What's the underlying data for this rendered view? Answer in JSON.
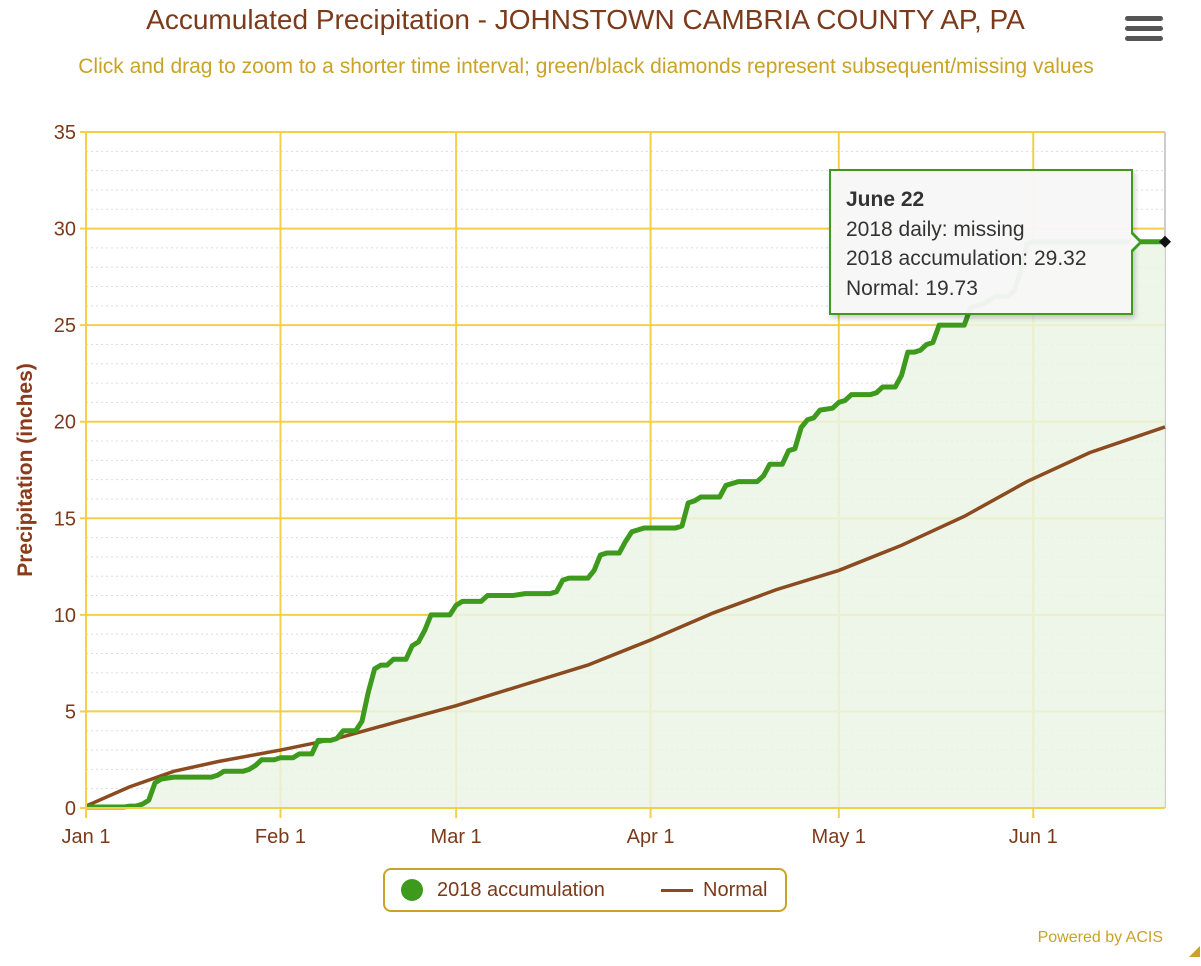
{
  "title": "Accumulated Precipitation - JOHNSTOWN CAMBRIA COUNTY AP, PA",
  "subtitle": "Click and drag to zoom to a shorter time interval; green/black diamonds represent subsequent/missing values",
  "menu_icon": "hamburger-menu-icon",
  "credit": "Powered by ACIS",
  "colors": {
    "accumulation": "#3d9a1c",
    "normal": "#8b4a1f",
    "grid": "#f3cf4a",
    "title": "#7b3a1a",
    "subtitle": "#c9a227",
    "area_fill": "#eaf4e4"
  },
  "tooltip": {
    "date": "June 22",
    "daily": "2018 daily: missing",
    "accumulation": "2018 accumulation: 29.32",
    "normal": "Normal: 19.73"
  },
  "legend": {
    "accumulation_label": "2018 accumulation",
    "normal_label": "Normal"
  },
  "chart_data": {
    "type": "line",
    "title": "Accumulated Precipitation - JOHNSTOWN CAMBRIA COUNTY AP, PA",
    "xlabel": "",
    "ylabel": "Precipitation (inches)",
    "x_unit": "day of year 2018 (Jan 1 = 0)",
    "xlim": [
      0,
      172
    ],
    "ylim": [
      0,
      35
    ],
    "yticks": [
      0,
      5,
      10,
      15,
      20,
      25,
      30,
      35
    ],
    "xticks": [
      {
        "label": "Jan 1",
        "day": 0
      },
      {
        "label": "Feb 1",
        "day": 31
      },
      {
        "label": "Mar 1",
        "day": 59
      },
      {
        "label": "Apr 1",
        "day": 90
      },
      {
        "label": "May 1",
        "day": 120
      },
      {
        "label": "Jun 1",
        "day": 151
      }
    ],
    "grid": true,
    "legend_position": "bottom-center",
    "series": [
      {
        "name": "2018 accumulation",
        "points": [
          [
            0,
            0.05
          ],
          [
            3,
            0.05
          ],
          [
            6,
            0.05
          ],
          [
            7,
            0.1
          ],
          [
            8,
            0.1
          ],
          [
            9,
            0.2
          ],
          [
            10,
            0.4
          ],
          [
            11,
            1.3
          ],
          [
            12,
            1.5
          ],
          [
            14,
            1.6
          ],
          [
            17,
            1.6
          ],
          [
            20,
            1.6
          ],
          [
            21,
            1.7
          ],
          [
            22,
            1.9
          ],
          [
            25,
            1.9
          ],
          [
            26,
            2.0
          ],
          [
            27,
            2.2
          ],
          [
            28,
            2.5
          ],
          [
            30,
            2.5
          ],
          [
            31,
            2.6
          ],
          [
            33,
            2.6
          ],
          [
            34,
            2.8
          ],
          [
            36,
            2.8
          ],
          [
            37,
            3.5
          ],
          [
            39,
            3.5
          ],
          [
            40,
            3.6
          ],
          [
            41,
            4.0
          ],
          [
            43,
            4.0
          ],
          [
            44,
            4.5
          ],
          [
            45,
            6.0
          ],
          [
            46,
            7.2
          ],
          [
            47,
            7.4
          ],
          [
            48,
            7.4
          ],
          [
            49,
            7.7
          ],
          [
            51,
            7.7
          ],
          [
            52,
            8.4
          ],
          [
            53,
            8.6
          ],
          [
            54,
            9.2
          ],
          [
            55,
            10.0
          ],
          [
            58,
            10.0
          ],
          [
            59,
            10.5
          ],
          [
            60,
            10.7
          ],
          [
            63,
            10.7
          ],
          [
            64,
            11.0
          ],
          [
            68,
            11.0
          ],
          [
            70,
            11.1
          ],
          [
            74,
            11.1
          ],
          [
            75,
            11.2
          ],
          [
            76,
            11.8
          ],
          [
            77,
            11.9
          ],
          [
            80,
            11.9
          ],
          [
            81,
            12.3
          ],
          [
            82,
            13.1
          ],
          [
            83,
            13.2
          ],
          [
            85,
            13.2
          ],
          [
            86,
            13.8
          ],
          [
            87,
            14.3
          ],
          [
            88,
            14.4
          ],
          [
            89,
            14.5
          ],
          [
            94,
            14.5
          ],
          [
            95,
            14.6
          ],
          [
            96,
            15.8
          ],
          [
            97,
            15.9
          ],
          [
            98,
            16.1
          ],
          [
            101,
            16.1
          ],
          [
            102,
            16.7
          ],
          [
            103,
            16.8
          ],
          [
            104,
            16.9
          ],
          [
            107,
            16.9
          ],
          [
            108,
            17.2
          ],
          [
            109,
            17.8
          ],
          [
            111,
            17.8
          ],
          [
            112,
            18.5
          ],
          [
            113,
            18.6
          ],
          [
            114,
            19.7
          ],
          [
            115,
            20.1
          ],
          [
            116,
            20.2
          ],
          [
            117,
            20.6
          ],
          [
            119,
            20.7
          ],
          [
            120,
            21.0
          ],
          [
            121,
            21.1
          ],
          [
            122,
            21.4
          ],
          [
            125,
            21.4
          ],
          [
            126,
            21.5
          ],
          [
            127,
            21.8
          ],
          [
            129,
            21.8
          ],
          [
            130,
            22.4
          ],
          [
            131,
            23.6
          ],
          [
            132,
            23.6
          ],
          [
            133,
            23.7
          ],
          [
            134,
            24.0
          ],
          [
            135,
            24.1
          ],
          [
            136,
            25.0
          ],
          [
            140,
            25.0
          ],
          [
            141,
            25.9
          ],
          [
            143,
            26.1
          ],
          [
            144,
            26.3
          ],
          [
            145,
            26.5
          ],
          [
            147,
            26.5
          ],
          [
            148,
            26.8
          ],
          [
            149,
            27.8
          ],
          [
            150,
            29.2
          ],
          [
            151,
            29.32
          ],
          [
            152,
            29.32
          ]
        ],
        "missing_marker": {
          "day": 172,
          "value": 29.32
        }
      },
      {
        "name": "Normal",
        "points": [
          [
            0,
            0.1
          ],
          [
            7,
            1.1
          ],
          [
            14,
            1.9
          ],
          [
            21,
            2.4
          ],
          [
            31,
            3.0
          ],
          [
            40,
            3.6
          ],
          [
            50,
            4.5
          ],
          [
            59,
            5.3
          ],
          [
            70,
            6.4
          ],
          [
            80,
            7.4
          ],
          [
            90,
            8.7
          ],
          [
            100,
            10.1
          ],
          [
            110,
            11.3
          ],
          [
            120,
            12.3
          ],
          [
            130,
            13.6
          ],
          [
            140,
            15.1
          ],
          [
            150,
            16.9
          ],
          [
            160,
            18.4
          ],
          [
            172,
            19.73
          ]
        ]
      }
    ]
  }
}
